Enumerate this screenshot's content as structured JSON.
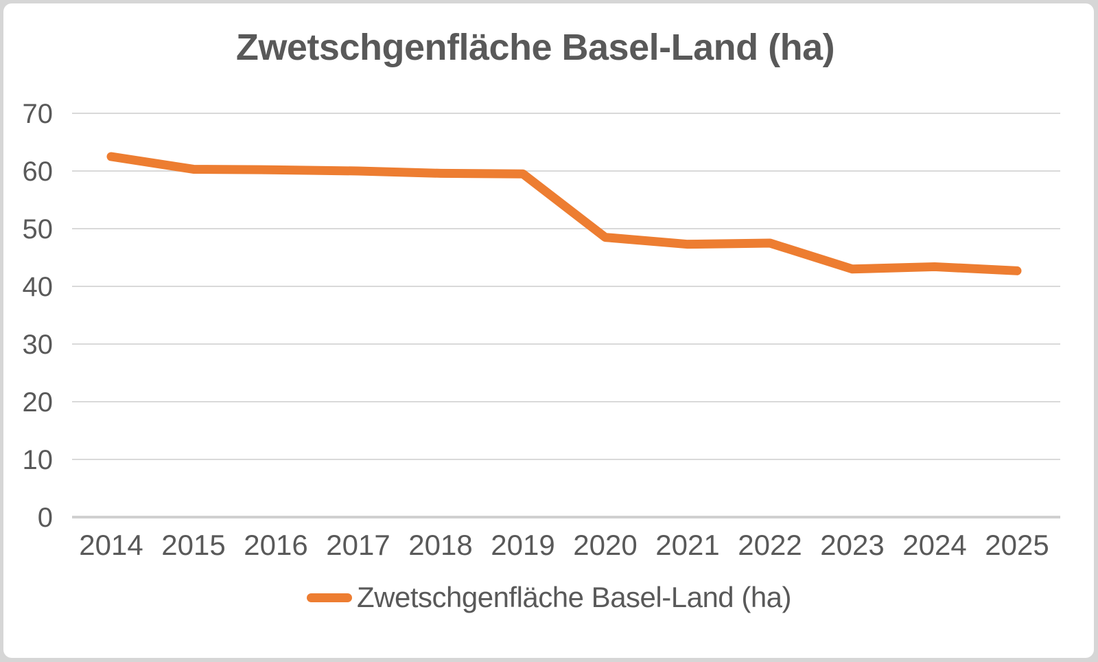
{
  "page": {
    "background_color": "#D6D6D6",
    "card_background_color": "#FFFFFF"
  },
  "chart_data": {
    "type": "line",
    "title": "Zwetschgenfläche Basel-Land (ha)",
    "legend": "Zwetschgenfläche Basel-Land (ha)",
    "legend_position": "bottom",
    "categories": [
      "2014",
      "2015",
      "2016",
      "2017",
      "2018",
      "2019",
      "2020",
      "2021",
      "2022",
      "2023",
      "2024",
      "2025"
    ],
    "series": [
      {
        "name": "Zwetschgenfläche Basel-Land (ha)",
        "values": [
          62.5,
          60.3,
          60.2,
          60.0,
          59.6,
          59.5,
          48.5,
          47.3,
          47.5,
          43.0,
          43.4,
          42.7
        ]
      }
    ],
    "xlabel": "",
    "ylabel": "",
    "ylim": [
      0,
      70
    ],
    "yticks": [
      0,
      10,
      20,
      30,
      40,
      50,
      60,
      70
    ],
    "grid": true,
    "line_color": "#ED7D31",
    "grid_color": "#D9D9D9",
    "axis_line_color": "#D0D0D0",
    "text_color": "#595959"
  }
}
